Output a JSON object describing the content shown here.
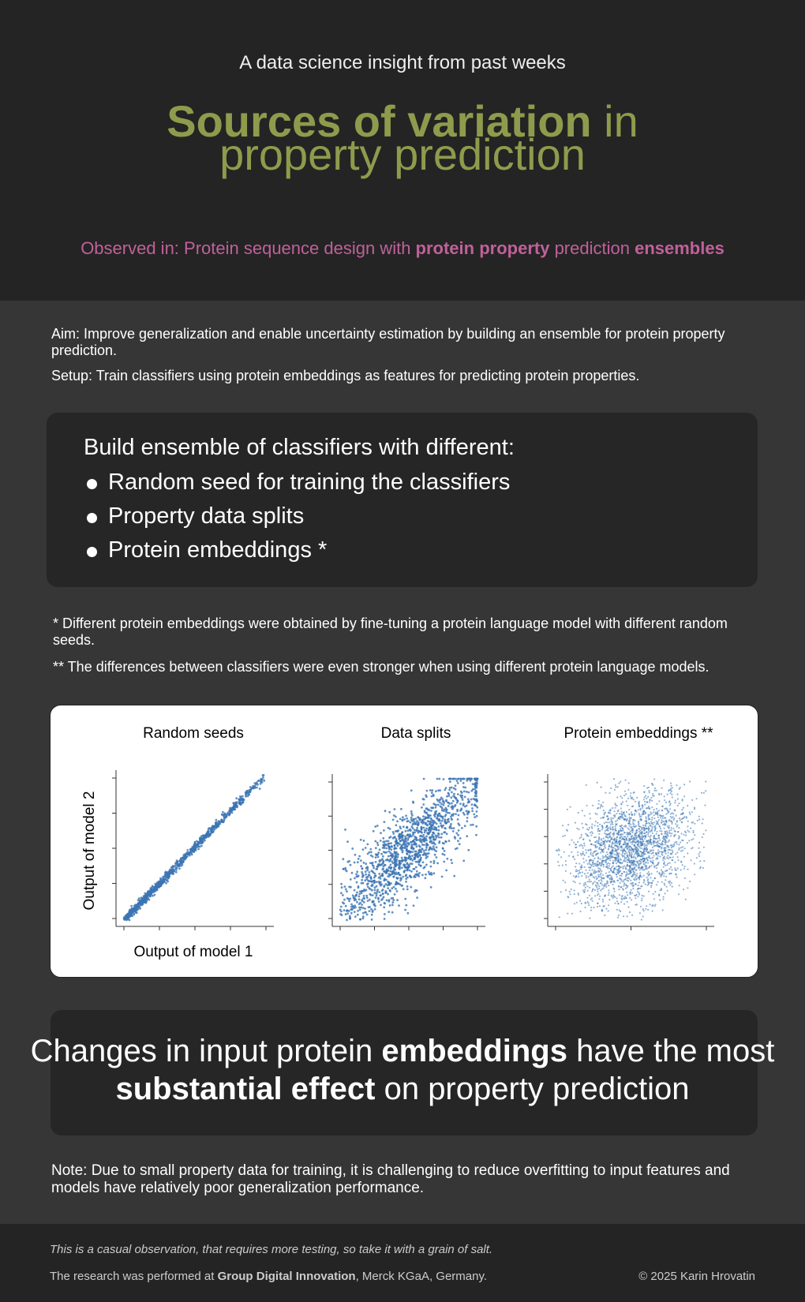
{
  "header": {
    "kicker": "A data science insight from past weeks",
    "title_line1": [
      {
        "text": "Sources of variation",
        "bold": true
      },
      {
        "text": " in",
        "bold": false
      }
    ],
    "title_line2": "property prediction",
    "observed": [
      {
        "text": "Observed in: Protein sequence design with ",
        "bold": false
      },
      {
        "text": "protein property",
        "bold": true
      },
      {
        "text": " prediction ",
        "bold": false
      },
      {
        "text": "ensembles",
        "bold": true
      }
    ]
  },
  "intro": {
    "aim": "Aim: Improve generalization and enable uncertainty estimation by building an ensemble for protein property prediction.",
    "setup": "Setup: Train classifiers using protein embeddings as features for predicting protein properties."
  },
  "box": {
    "heading": "Build ensemble of classifiers with different:",
    "bullets": [
      "Random seed for training the classifiers",
      "Property data splits",
      "Protein embeddings *"
    ]
  },
  "footnotes": [
    "* Different protein embeddings were obtained by fine-tuning a protein language model with different random seeds.",
    "** The differences between classifiers were even stronger when using different protein language models."
  ],
  "figure": {
    "panels": [
      "Random seeds",
      "Data splits",
      "Protein embeddings **"
    ],
    "y_label": "Output of model 2",
    "x_label": "Output of model 1"
  },
  "conclusion": {
    "line1": [
      {
        "text": "Changes in input protein ",
        "bold": false
      },
      {
        "text": "embeddings",
        "bold": true
      },
      {
        "text": " have the most",
        "bold": false
      }
    ],
    "line2": [
      {
        "text": "substantial effect",
        "bold": true
      },
      {
        "text": " on property prediction",
        "bold": false
      }
    ]
  },
  "note": "Note: Due to small property data for training, it is challenging to reduce overfitting to input features and models have relatively poor generalization performance.",
  "footer": {
    "disclaimer": "This is a casual observation, that requires more testing, so take it with a grain of salt.",
    "research": [
      {
        "text": "The research was performed at ",
        "bold": false
      },
      {
        "text": "Group Digital Innovation",
        "bold": true
      },
      {
        "text": ", Merck KGaA, Germany.",
        "bold": false
      }
    ],
    "copyright": "© 2025 Karin Hrovatin"
  }
}
